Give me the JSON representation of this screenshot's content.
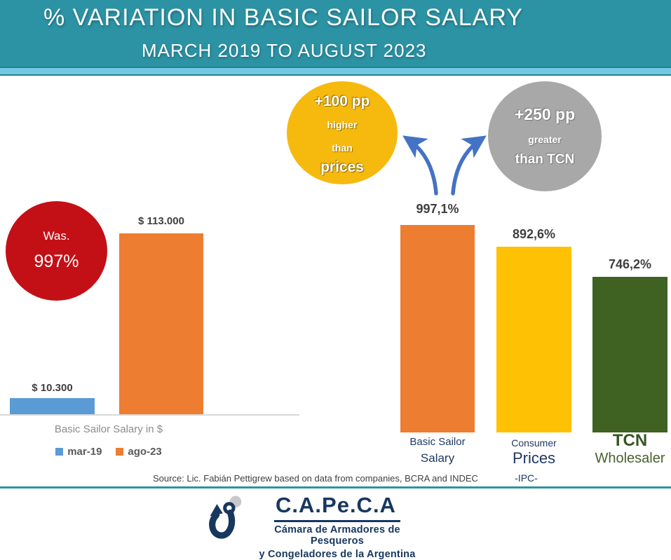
{
  "header": {
    "title": "% VARIATION IN BASIC SAILOR SALARY",
    "subtitle": "MARCH 2019 TO AUGUST 2023"
  },
  "colors": {
    "header_teal": "#2C93A4",
    "header_stripe_blue": "#73C9E1",
    "bar_blue": "#5B9BD5",
    "bar_orange": "#ED7D31",
    "bar_yellow": "#FFC103",
    "bar_green": "#3F6121",
    "bubble_yellow": "#F6B90E",
    "bubble_gray": "#A8A8A8",
    "bubble_red": "#C31017",
    "arrow_blue": "#4472C4",
    "label_navy": "#1F3864",
    "tcn_green_text": "#375623",
    "logo_navy": "#17375E"
  },
  "annotations": {
    "prices_bubble": {
      "line1": "+100 pp",
      "line2": "higher",
      "line3": "than",
      "line4": "prices"
    },
    "tcn_bubble": {
      "line1": "+250 pp",
      "line2": "greater",
      "line3": "than TCN"
    },
    "was_bubble": {
      "line1": "Was.",
      "line2": "997%"
    }
  },
  "left_chart": {
    "title": "Basic Sailor Salary in $",
    "bars": [
      {
        "label": "mar-19",
        "value": 10300,
        "value_label": "$ 10.300"
      },
      {
        "label": "ago-23",
        "value": 113000,
        "value_label": "$ 113.000"
      }
    ],
    "legend": [
      {
        "label": "mar-19",
        "color": "#5B9BD5"
      },
      {
        "label": "ago-23",
        "color": "#ED7D31"
      }
    ]
  },
  "right_chart": {
    "bars": [
      {
        "value": 997.1,
        "value_label": "997,1%",
        "label_line1": "Basic Sailor",
        "label_line2": "Salary"
      },
      {
        "value": 892.6,
        "value_label": "892,6%",
        "label_line1": "Consumer",
        "label_line2": "Prices",
        "label_line3": "-IPC-"
      },
      {
        "value": 746.2,
        "value_label": "746,2%",
        "label_line1": "TCN",
        "label_line2": "Wholesaler"
      }
    ]
  },
  "source": "Source: Lic. Fabián Pettigrew based on data from companies, BCRA and INDEC",
  "footer": {
    "org_acronym": "C.A.Pe.C.A",
    "org_name_line1": "Cámara de Armadores de Pesqueros",
    "org_name_line2": "y Congeladores de la Argentina"
  },
  "chart_data": [
    {
      "type": "bar",
      "title": "Basic Sailor Salary in $",
      "categories": [
        "mar-19",
        "ago-23"
      ],
      "values": [
        10300,
        113000
      ],
      "value_labels": [
        "$ 10.300",
        "$ 113.000"
      ],
      "bar_colors": [
        "#5B9BD5",
        "#ED7D31"
      ],
      "xlabel": "",
      "ylabel": "Basic Sailor Salary in $",
      "ylim": [
        0,
        120000
      ],
      "grid": false,
      "legend_position": "bottom",
      "annotations": [
        "Was. 997%"
      ]
    },
    {
      "type": "bar",
      "title": "",
      "categories": [
        "Basic Sailor Salary",
        "Consumer Prices -IPC-",
        "TCN Wholesaler"
      ],
      "values": [
        997.1,
        892.6,
        746.2
      ],
      "value_labels": [
        "997,1%",
        "892,6%",
        "746,2%"
      ],
      "bar_colors": [
        "#ED7D31",
        "#FFC103",
        "#3F6121"
      ],
      "xlabel": "",
      "ylabel": "% variation",
      "ylim": [
        0,
        1010
      ],
      "grid": false,
      "legend_position": "none",
      "annotations": [
        "+100 pp higher than prices",
        "+250 pp greater than TCN"
      ]
    }
  ]
}
